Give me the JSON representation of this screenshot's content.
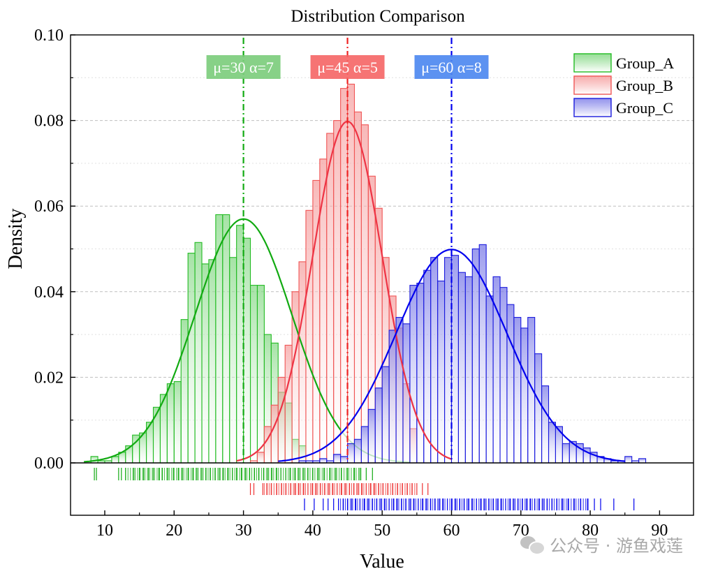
{
  "chart_data": {
    "type": "histogram",
    "title": "Distribution Comparison",
    "xlabel": "Value",
    "ylabel": "Density",
    "xlim": [
      5,
      95
    ],
    "ylim": [
      0,
      0.1
    ],
    "xticks": [
      10,
      20,
      30,
      40,
      50,
      60,
      70,
      80,
      90
    ],
    "yticks": [
      "0.00",
      "0.02",
      "0.04",
      "0.06",
      "0.08",
      "0.10"
    ],
    "grid": "horizontal dashed",
    "legend_position": "top-right",
    "series": [
      {
        "name": "Group_A",
        "color": "#00aa00",
        "mu": 30,
        "sigma": 7,
        "annotation": "μ=30  α=7",
        "bin_start": 8,
        "bin_width": 1,
        "density": [
          0.0015,
          0.0005,
          0.0005,
          0.0015,
          0.0025,
          0.004,
          0.0065,
          0.007,
          0.0095,
          0.013,
          0.016,
          0.0185,
          0.019,
          0.0335,
          0.049,
          0.0515,
          0.0465,
          0.0475,
          0.058,
          0.058,
          0.048,
          0.0555,
          0.0525,
          0.0415,
          0.0415,
          0.03,
          0.028,
          0.0165,
          0.014,
          0.0055,
          0.004
        ],
        "rug": [
          8.5,
          8.8,
          12,
          12.4,
          13,
          14.2,
          15,
          15.6,
          16.3,
          17,
          17.8,
          18.3,
          19.1,
          19.9,
          20.6,
          21.2,
          22,
          22.7,
          23.3,
          24,
          24.6,
          25.2,
          25.9,
          26.5,
          27.1,
          27.8,
          28.4,
          29,
          29.7,
          30.3,
          30.9,
          31.6,
          32.2,
          32.9,
          33.5,
          34.1,
          34.8,
          35.4,
          36.1,
          36.7,
          37.4,
          38,
          38.7,
          39.3,
          40,
          40.8,
          41.6,
          42.5,
          43.3,
          44.1,
          45,
          46,
          46.8,
          47.7,
          48.6
        ]
      },
      {
        "name": "Group_B",
        "color": "#ee3333",
        "mu": 45,
        "sigma": 5,
        "annotation": "μ=45  α=5",
        "bin_start": 31,
        "bin_width": 1,
        "density": [
          0.0005,
          0.0025,
          0.0085,
          0.0135,
          0.02,
          0.0275,
          0.04,
          0.047,
          0.059,
          0.066,
          0.071,
          0.077,
          0.08,
          0.0875,
          0.0885,
          0.082,
          0.079,
          0.067,
          0.0595,
          0.048,
          0.039,
          0.0315,
          0.0185,
          0.008
        ],
        "rug": [
          31,
          31.5,
          32.8,
          33.4,
          34,
          34.8,
          35.5,
          36.1,
          36.8,
          37.4,
          38,
          38.7,
          39.3,
          39.9,
          40.5,
          41.1,
          41.7,
          42.3,
          42.9,
          43.5,
          44.1,
          44.7,
          45.3,
          45.9,
          46.5,
          47.1,
          47.7,
          48.3,
          48.9,
          49.5,
          50.1,
          50.8,
          51.5,
          52.2,
          52.9,
          53.6,
          54.3,
          55,
          55.8,
          56.6
        ]
      },
      {
        "name": "Group_C",
        "color": "#0000dd",
        "mu": 60,
        "sigma": 8,
        "annotation": "μ=60  α=8",
        "bin_start": 38,
        "bin_width": 1,
        "density": [
          0.0005,
          0.0005,
          0.0005,
          0.001,
          0.0005,
          0.002,
          0.0015,
          0.0045,
          0.0055,
          0.0085,
          0.0125,
          0.0175,
          0.0225,
          0.031,
          0.034,
          0.0325,
          0.0415,
          0.042,
          0.045,
          0.048,
          0.0425,
          0.048,
          0.0485,
          0.0445,
          0.0435,
          0.05,
          0.051,
          0.039,
          0.0435,
          0.041,
          0.037,
          0.034,
          0.0315,
          0.034,
          0.0255,
          0.018,
          0.0095,
          0.0085,
          0.0045,
          0.005,
          0.0045,
          0.0035,
          0.0025,
          0.0015,
          0.001,
          0.0005,
          0.0005,
          0.0015,
          0.0005,
          0.001
        ]
      }
    ]
  },
  "rug_c": [
    38.8,
    40.2,
    41.5,
    42.2,
    43,
    43.7,
    44.4,
    45,
    45.6,
    46.2,
    46.8,
    47.4,
    48,
    48.6,
    49.2,
    49.8,
    50.4,
    51,
    51.6,
    52.2,
    52.8,
    53.4,
    54,
    54.6,
    55.2,
    55.8,
    56.4,
    57,
    57.6,
    58.2,
    58.8,
    59.4,
    60,
    60.6,
    61.2,
    61.8,
    62.4,
    63,
    63.6,
    64.2,
    64.8,
    65.4,
    66,
    66.6,
    67.2,
    67.8,
    68.4,
    69,
    69.6,
    70.2,
    70.8,
    71.4,
    72,
    72.6,
    73.2,
    73.8,
    74.5,
    75.2,
    76,
    76.8,
    77.7,
    78.6,
    79.6,
    80.6,
    81.5,
    83.4,
    86.3
  ],
  "watermark": "公众号 · 游鱼戏莲"
}
